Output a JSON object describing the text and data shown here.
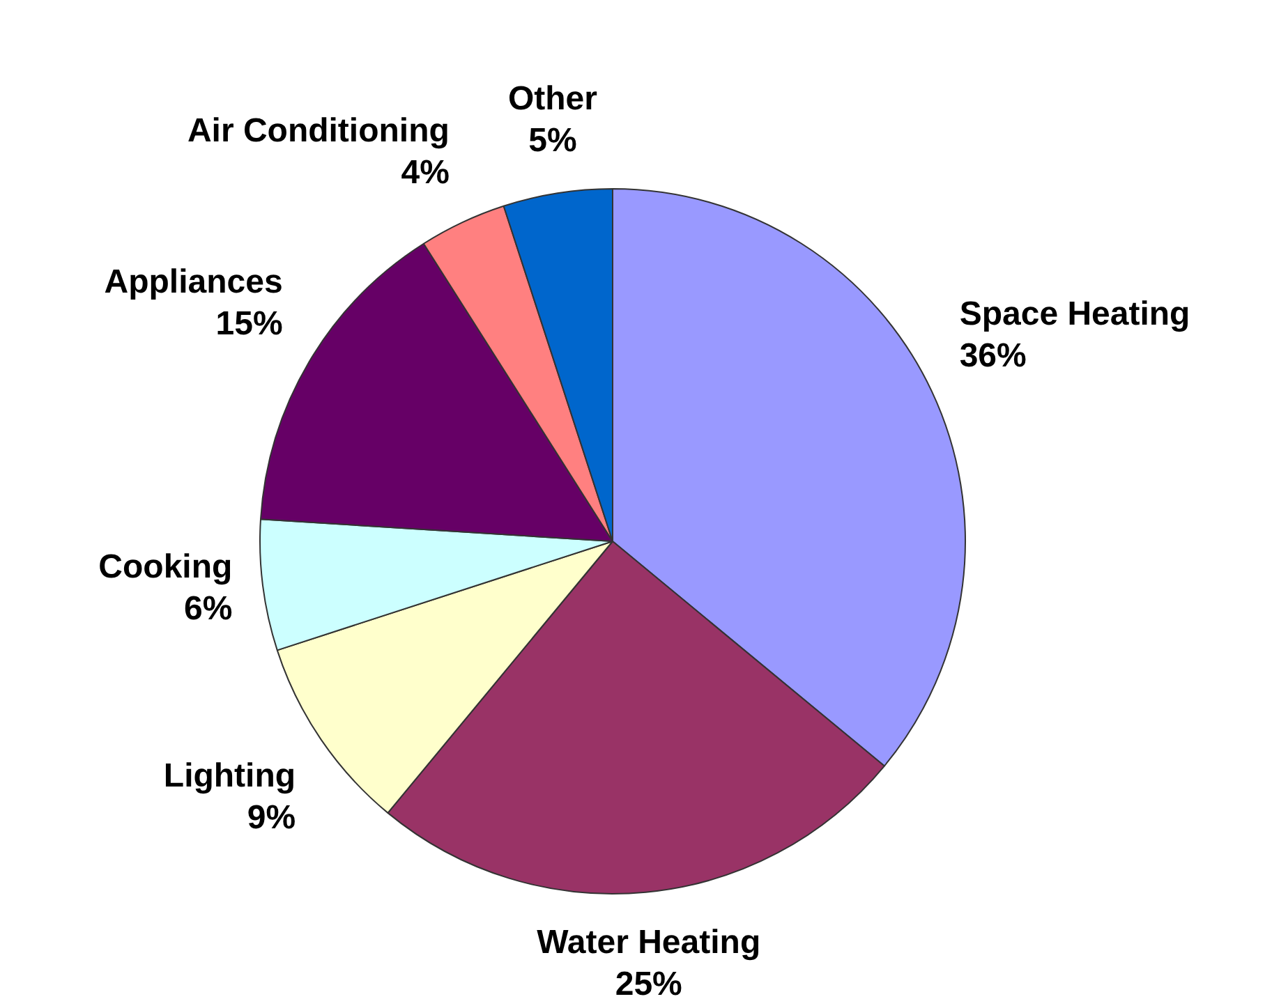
{
  "chart_data": {
    "type": "pie",
    "categories": [
      "Space Heating",
      "Water Heating",
      "Lighting",
      "Cooking",
      "Appliances",
      "Air Conditioning",
      "Other"
    ],
    "values": [
      36,
      25,
      9,
      6,
      15,
      4,
      5
    ],
    "colors": [
      "#9999ff",
      "#993366",
      "#ffffcc",
      "#ccffff",
      "#660066",
      "#ff8080",
      "#0066cc"
    ],
    "value_labels": [
      "36%",
      "25%",
      "9%",
      "6%",
      "15%",
      "4%",
      "5%"
    ],
    "legend": false
  }
}
